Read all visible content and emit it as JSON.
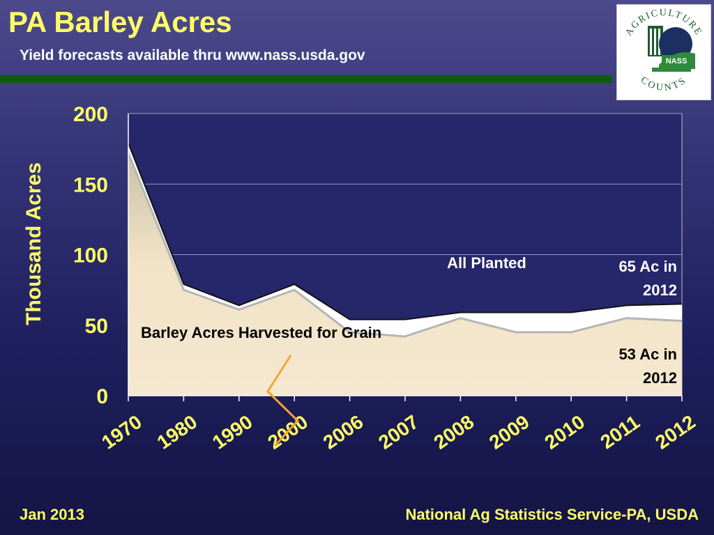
{
  "header": {
    "title": "PA Barley Acres",
    "subtitle": "Yield forecasts available thru www.nass.usda.gov"
  },
  "logo": {
    "top_text": "AGRICULTURE",
    "bottom_text": "COUNTS",
    "badge_text": "NASS"
  },
  "footer": {
    "date": "Jan 2013",
    "source": "National Ag Statistics Service-PA, USDA"
  },
  "colors": {
    "title": "#ffff66",
    "divider": "#0d5b12",
    "harvested_fill": "#f5e8d0",
    "planted_fill": "#ffffff"
  },
  "chart_data": {
    "type": "area",
    "categories": [
      "1970",
      "1980",
      "1990",
      "2000",
      "2006",
      "2007",
      "2008",
      "2009",
      "2010",
      "2011",
      "2012"
    ],
    "series": [
      {
        "name": "All Planted",
        "values": [
          179,
          79,
          64,
          79,
          54,
          54,
          59,
          59,
          59,
          64,
          65
        ]
      },
      {
        "name": "Barley Acres Harvested for Grain",
        "values": [
          172,
          75,
          61,
          75,
          45,
          42,
          55,
          45,
          45,
          55,
          53
        ]
      }
    ],
    "ylabel": "Thousand Acres",
    "ylim": [
      0,
      200
    ],
    "yticks": [
      0,
      50,
      100,
      150,
      200
    ],
    "grid": true,
    "axis_break_after": "2000",
    "annotations": {
      "planted_label": "All Planted",
      "harvested_label": "Barley Acres Harvested for Grain",
      "planted_note_line1": "65 Ac in",
      "planted_note_line2": "2012",
      "harvested_note_line1": "53 Ac in",
      "harvested_note_line2": "2012"
    }
  }
}
